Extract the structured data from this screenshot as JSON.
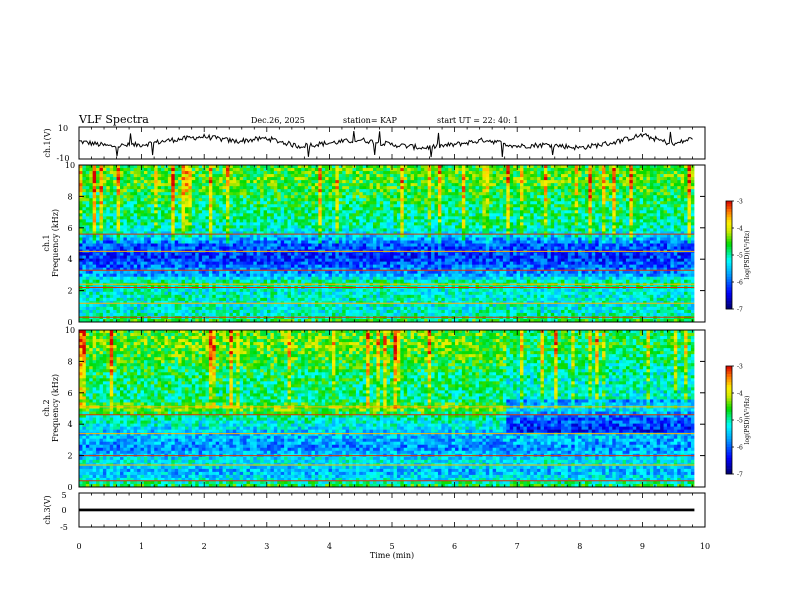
{
  "header": {
    "title": "VLF Spectra",
    "date": "Dec.26, 2025",
    "station": "station= KAP",
    "start": "start UT =  22: 40: 1"
  },
  "chart_data": [
    {
      "type": "line",
      "name": "ch1-waveform",
      "ylabel": "ch.1(V)",
      "ylim": [
        -10,
        10
      ],
      "ytick_labels": [
        "10",
        "-10"
      ],
      "xlim": [
        0,
        10
      ],
      "line_color": "#000000",
      "series": [
        {
          "name": "ch.1",
          "x": [
            0,
            0.5,
            1,
            1.5,
            2,
            2.5,
            3,
            3.5,
            4,
            4.5,
            5,
            5.5,
            6,
            6.5,
            7,
            7.5,
            8,
            8.5,
            9,
            9.5,
            9.8
          ],
          "values": [
            1,
            -2,
            -1,
            2,
            4,
            1,
            3,
            -2,
            0,
            2,
            -1,
            -3,
            -1,
            2,
            -2,
            -1,
            -3,
            0,
            5,
            -1,
            3
          ]
        }
      ]
    },
    {
      "type": "heatmap",
      "name": "ch1-spectrogram",
      "ylabel": "ch.1\nFrequency (kHz)",
      "ylim": [
        0,
        10
      ],
      "xlim": [
        0,
        10
      ],
      "data_end_min": 9.83,
      "ytick_labels": [
        "0",
        "2",
        "4",
        "6",
        "8",
        "10"
      ],
      "colorbar": {
        "label": "log(PSD)(V²/Hz)",
        "range": [
          -7,
          -3
        ],
        "tick_labels": [
          "-3",
          "-4",
          "-5",
          "-6",
          "-7"
        ]
      },
      "frequency_profile_khz": [
        0,
        0.5,
        1,
        1.5,
        2,
        2.5,
        3,
        3.5,
        4,
        4.5,
        5,
        5.5,
        6,
        7,
        8,
        9,
        10
      ],
      "log_psd_profile": [
        -4.6,
        -5.1,
        -5.2,
        -5.1,
        -5.2,
        -4.8,
        -5.7,
        -5.9,
        -6.2,
        -6.1,
        -6.0,
        -5.4,
        -5.0,
        -4.9,
        -4.7,
        -4.5,
        -4.6
      ],
      "line_frequencies_khz": [
        0.3,
        1.2,
        2.2,
        2.4,
        3.3,
        4.5,
        5.6
      ]
    },
    {
      "type": "heatmap",
      "name": "ch2-spectrogram",
      "ylabel": "ch.2\nFrequency (kHz)",
      "ylim": [
        0,
        10
      ],
      "xlim": [
        0,
        10
      ],
      "data_end_min": 9.83,
      "ytick_labels": [
        "0",
        "2",
        "4",
        "6",
        "8",
        "10"
      ],
      "colorbar": {
        "label": "log(PSD)(V²/Hz)",
        "range": [
          -7,
          -3
        ],
        "tick_labels": [
          "-3",
          "-4",
          "-5",
          "-6",
          "-7"
        ]
      },
      "frequency_profile_khz": [
        0,
        0.5,
        1,
        1.5,
        2,
        2.5,
        3,
        3.5,
        4,
        4.5,
        5,
        5.5,
        6,
        7,
        8,
        9,
        10
      ],
      "log_psd_profile": [
        -4.6,
        -5.3,
        -5.6,
        -5.2,
        -5.5,
        -5.8,
        -5.6,
        -5.5,
        -5.2,
        -5.0,
        -4.3,
        -4.9,
        -4.9,
        -4.8,
        -4.6,
        -4.4,
        -4.5
      ],
      "regime_change_min": 6.8,
      "line_frequencies_khz": [
        0.4,
        1.4,
        2.0,
        3.4,
        4.6,
        5.1
      ]
    },
    {
      "type": "line",
      "name": "ch3-waveform",
      "ylabel": "ch.3(V)",
      "ylim": [
        -5,
        5
      ],
      "ytick_labels": [
        "5",
        "0",
        "-5"
      ],
      "xlim": [
        0,
        10
      ],
      "xlabel": "Time (min)",
      "xtick_labels": [
        "0",
        "1",
        "2",
        "3",
        "4",
        "5",
        "6",
        "7",
        "8",
        "9",
        "10"
      ],
      "series": [
        {
          "name": "ch.3",
          "band_low": -0.4,
          "band_high": 0.4,
          "x_end": 9.83
        }
      ]
    }
  ]
}
